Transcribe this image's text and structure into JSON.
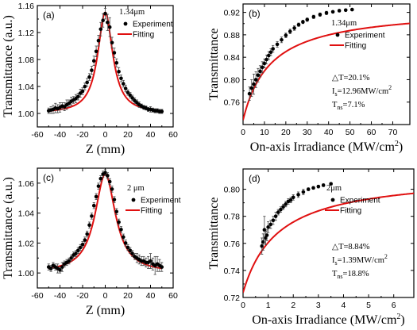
{
  "colors": {
    "fit": "#e01010",
    "points": "#000000"
  },
  "chart_data": [
    {
      "id": "a",
      "type": "scatter",
      "panel_label": "(a)",
      "wavelength": "1.34μm",
      "legend": [
        "Experiment",
        "Fitting"
      ],
      "xlabel": "Z (mm)",
      "ylabel": "Transmittance (a.u.)",
      "xlim": [
        -60,
        60
      ],
      "ylim": [
        0.98,
        1.16
      ],
      "xticks": [
        -60,
        -40,
        -20,
        0,
        20,
        40,
        60
      ],
      "yticks": [
        1.0,
        1.04,
        1.08,
        1.12,
        1.16
      ],
      "ytick_labels": [
        "1.00",
        "1.04",
        "1.08",
        "1.12",
        "1.16"
      ],
      "fit": {
        "model": "lorentzian",
        "x0": 0,
        "baseline": 1.0,
        "amplitude": 0.15,
        "width": 8
      },
      "series": [
        {
          "name": "Experiment",
          "x": [
            -50,
            -48,
            -46,
            -44,
            -42,
            -40,
            -38,
            -36,
            -34,
            -32,
            -30,
            -28,
            -26,
            -24,
            -22,
            -20,
            -18,
            -16,
            -14,
            -12,
            -10,
            -8,
            -6,
            -4,
            -2,
            0,
            2,
            4,
            6,
            8,
            10,
            12,
            14,
            16,
            18,
            20,
            22,
            24,
            26,
            28,
            30,
            32,
            34,
            36,
            38,
            40,
            42,
            44,
            46,
            48,
            50
          ],
          "y": [
            1.004,
            1.005,
            1.006,
            1.008,
            1.007,
            1.009,
            1.011,
            1.01,
            1.013,
            1.015,
            1.018,
            1.02,
            1.022,
            1.025,
            1.03,
            1.033,
            1.04,
            1.046,
            1.054,
            1.064,
            1.078,
            1.092,
            1.108,
            1.125,
            1.138,
            1.148,
            1.135,
            1.128,
            1.105,
            1.09,
            1.075,
            1.062,
            1.052,
            1.044,
            1.037,
            1.031,
            1.027,
            1.023,
            1.019,
            1.016,
            1.013,
            1.011,
            1.009,
            1.008,
            1.006,
            1.006,
            1.005,
            1.004,
            1.004,
            1.003,
            1.003
          ],
          "err": [
            0.004,
            0.005,
            0.006,
            0.007,
            0.006,
            0.007,
            0.005,
            0.006,
            0.007,
            0.005,
            0.006,
            0.005,
            0.006,
            0.005,
            0.006,
            0.005,
            0.005,
            0.006,
            0.005,
            0.006,
            0.007,
            0.008,
            0.008,
            0.01,
            0.01,
            0.008,
            0.012,
            0.014,
            0.008,
            0.007,
            0.006,
            0.006,
            0.005,
            0.005,
            0.005,
            0.004,
            0.004,
            0.004,
            0.004,
            0.004,
            0.004,
            0.003,
            0.003,
            0.003,
            0.003,
            0.004,
            0.003,
            0.003,
            0.003,
            0.003,
            0.003
          ]
        }
      ]
    },
    {
      "id": "b",
      "type": "scatter",
      "panel_label": "(b)",
      "wavelength": "1.34μm",
      "legend": [
        "Experiment",
        "Fitting"
      ],
      "xlabel": "On-axis Irradiance (MW/cm",
      "xlabel_sup": "2",
      "xlabel_end": ")",
      "ylabel": "Transmittance",
      "xlim": [
        0,
        78
      ],
      "ylim": [
        0.72,
        0.935
      ],
      "xticks": [
        0,
        10,
        20,
        30,
        40,
        50,
        60,
        70
      ],
      "yticks": [
        0.76,
        0.8,
        0.84,
        0.88,
        0.92
      ],
      "ytick_labels": [
        "0.76",
        "0.80",
        "0.84",
        "0.88",
        "0.92"
      ],
      "annotations": [
        "△T=20.1%",
        "I",
        "s",
        "=12.96MW/cm",
        "2",
        "T",
        "ns",
        "=7.1%"
      ],
      "fit": {
        "model": "saturable",
        "Tmax": 0.929,
        "deltaT": 0.201,
        "Is": 12.96
      },
      "series": [
        {
          "name": "Experiment",
          "x": [
            3,
            4,
            5,
            6,
            7,
            8,
            9,
            10,
            11,
            12,
            13,
            14,
            16,
            18,
            20,
            22,
            24,
            26,
            28,
            30,
            33,
            36,
            39,
            42,
            45,
            48,
            51
          ],
          "y": [
            0.775,
            0.785,
            0.792,
            0.8,
            0.808,
            0.815,
            0.822,
            0.829,
            0.836,
            0.843,
            0.849,
            0.855,
            0.863,
            0.871,
            0.879,
            0.886,
            0.892,
            0.898,
            0.903,
            0.907,
            0.912,
            0.916,
            0.919,
            0.921,
            0.923,
            0.924,
            0.925
          ],
          "err": [
            0.012,
            0.015,
            0.018,
            0.014,
            0.012,
            0.01,
            0.01,
            0.008,
            0.008,
            0.007,
            0.006,
            0.006,
            0.005,
            0.005,
            0.004,
            0.004,
            0.004,
            0.003,
            0.003,
            0.003,
            0.003,
            0.003,
            0.003,
            0.002,
            0.002,
            0.002,
            0.002
          ]
        }
      ]
    },
    {
      "id": "c",
      "type": "scatter",
      "panel_label": "(c)",
      "wavelength": "2 μm",
      "legend": [
        "Experiment",
        "Fitting"
      ],
      "xlabel": "Z (mm)",
      "ylabel": "Transmittance (a.u.)",
      "xlim": [
        -60,
        60
      ],
      "ylim": [
        0.99,
        1.07
      ],
      "xticks": [
        -60,
        -40,
        -20,
        0,
        20,
        40,
        60
      ],
      "yticks": [
        1.0,
        1.02,
        1.04,
        1.06
      ],
      "ytick_labels": [
        "1.00",
        "1.02",
        "1.04",
        "1.06"
      ],
      "fit": {
        "model": "lorentzian",
        "x0": 0,
        "baseline": 1.0,
        "amplitude": 0.066,
        "width": 11
      },
      "series": [
        {
          "name": "Experiment",
          "x": [
            -50,
            -48,
            -46,
            -44,
            -42,
            -40,
            -38,
            -36,
            -34,
            -32,
            -30,
            -28,
            -26,
            -24,
            -22,
            -20,
            -18,
            -16,
            -14,
            -12,
            -10,
            -8,
            -6,
            -4,
            -2,
            0,
            2,
            4,
            6,
            8,
            10,
            12,
            14,
            16,
            18,
            20,
            22,
            24,
            26,
            28,
            30,
            32,
            34,
            36,
            38,
            40,
            42,
            44,
            46,
            48,
            50
          ],
          "y": [
            1.004,
            1.003,
            1.005,
            1.004,
            1.003,
            1.002,
            1.004,
            1.006,
            1.007,
            1.008,
            1.01,
            1.012,
            1.013,
            1.015,
            1.017,
            1.019,
            1.022,
            1.026,
            1.032,
            1.038,
            1.045,
            1.051,
            1.058,
            1.063,
            1.066,
            1.067,
            1.065,
            1.061,
            1.056,
            1.049,
            1.041,
            1.034,
            1.029,
            1.024,
            1.02,
            1.017,
            1.015,
            1.013,
            1.011,
            1.01,
            1.009,
            1.008,
            1.008,
            1.007,
            1.007,
            1.008,
            1.006,
            1.005,
            1.006,
            1.005,
            1.004
          ],
          "err": [
            0.002,
            0.002,
            0.002,
            0.002,
            0.003,
            0.002,
            0.003,
            0.002,
            0.002,
            0.002,
            0.002,
            0.002,
            0.002,
            0.002,
            0.002,
            0.002,
            0.002,
            0.002,
            0.002,
            0.002,
            0.002,
            0.002,
            0.002,
            0.002,
            0.002,
            0.002,
            0.002,
            0.002,
            0.002,
            0.002,
            0.002,
            0.002,
            0.002,
            0.002,
            0.002,
            0.002,
            0.002,
            0.002,
            0.002,
            0.003,
            0.003,
            0.003,
            0.003,
            0.003,
            0.004,
            0.005,
            0.004,
            0.006,
            0.005,
            0.004,
            0.003
          ]
        }
      ]
    },
    {
      "id": "d",
      "type": "scatter",
      "panel_label": "(d)",
      "wavelength": "2μm",
      "legend": [
        "Experiment",
        "Fitting"
      ],
      "xlabel": "On-axis Irradiance (MW/cm",
      "xlabel_sup": "2",
      "xlabel_end": ")",
      "ylabel": "Transmittance",
      "xlim": [
        0,
        6.8
      ],
      "ylim": [
        0.72,
        0.815
      ],
      "xticks": [
        0,
        1,
        2,
        3,
        4,
        5,
        6
      ],
      "yticks": [
        0.72,
        0.74,
        0.76,
        0.78,
        0.8
      ],
      "ytick_labels": [
        "0.72",
        "0.74",
        "0.76",
        "0.78",
        "0.80"
      ],
      "annotations": [
        "△T=8.84%",
        "I",
        "s",
        "=1.39MW/cm",
        "2",
        "T",
        "ns",
        "=18.8%"
      ],
      "fit": {
        "model": "saturable",
        "Tmax": 0.812,
        "deltaT": 0.0884,
        "Is": 1.39
      },
      "series": [
        {
          "name": "Experiment",
          "x": [
            0.75,
            0.8,
            0.85,
            0.9,
            0.95,
            1.0,
            1.1,
            1.2,
            1.3,
            1.4,
            1.5,
            1.6,
            1.7,
            1.8,
            1.9,
            2.0,
            2.2,
            2.4,
            2.6,
            2.8,
            3.0,
            3.2,
            3.5
          ],
          "y": [
            0.758,
            0.761,
            0.77,
            0.764,
            0.766,
            0.772,
            0.774,
            0.777,
            0.78,
            0.783,
            0.785,
            0.787,
            0.789,
            0.791,
            0.792,
            0.794,
            0.796,
            0.798,
            0.8,
            0.801,
            0.802,
            0.803,
            0.804
          ],
          "err": [
            0.006,
            0.006,
            0.01,
            0.005,
            0.004,
            0.004,
            0.003,
            0.003,
            0.003,
            0.002,
            0.002,
            0.002,
            0.002,
            0.002,
            0.002,
            0.002,
            0.002,
            0.002,
            0.001,
            0.001,
            0.001,
            0.001,
            0.001
          ]
        }
      ]
    }
  ]
}
